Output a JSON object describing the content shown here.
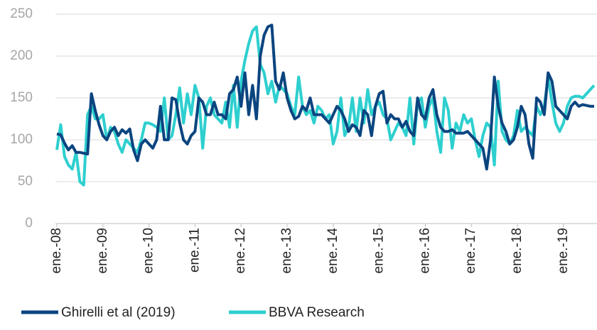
{
  "chart_data": {
    "type": "line",
    "categories": [
      "ene.-08",
      null,
      null,
      null,
      null,
      null,
      null,
      null,
      null,
      null,
      null,
      null,
      "ene.-09",
      null,
      null,
      null,
      null,
      null,
      null,
      null,
      null,
      null,
      null,
      null,
      "ene.-10",
      null,
      null,
      null,
      null,
      null,
      null,
      null,
      null,
      null,
      null,
      null,
      "ene.-11",
      null,
      null,
      null,
      null,
      null,
      null,
      null,
      null,
      null,
      null,
      null,
      "ene.-12",
      null,
      null,
      null,
      null,
      null,
      null,
      null,
      null,
      null,
      null,
      null,
      "ene.-13",
      null,
      null,
      null,
      null,
      null,
      null,
      null,
      null,
      null,
      null,
      null,
      "ene.-14",
      null,
      null,
      null,
      null,
      null,
      null,
      null,
      null,
      null,
      null,
      null,
      "ene.-15",
      null,
      null,
      null,
      null,
      null,
      null,
      null,
      null,
      null,
      null,
      null,
      "ene.-16",
      null,
      null,
      null,
      null,
      null,
      null,
      null,
      null,
      null,
      null,
      null,
      "ene.-17",
      null,
      null,
      null,
      null,
      null,
      null,
      null,
      null,
      null,
      null,
      null,
      "ene.-18",
      null,
      null,
      null,
      null,
      null,
      null,
      null,
      null,
      null,
      null,
      null,
      "ene.-19",
      null,
      null,
      null,
      null,
      null,
      null,
      null,
      null
    ],
    "series": [
      {
        "name": "Ghirelli et al (2019)",
        "color": "#0b4580",
        "values": [
          107,
          106,
          96,
          88,
          93,
          85,
          85,
          84,
          83,
          155,
          135,
          118,
          105,
          100,
          110,
          115,
          105,
          112,
          108,
          113,
          88,
          75,
          95,
          100,
          95,
          90,
          100,
          140,
          100,
          100,
          150,
          148,
          120,
          100,
          95,
          105,
          110,
          150,
          145,
          130,
          130,
          145,
          130,
          130,
          125,
          155,
          160,
          175,
          140,
          180,
          130,
          165,
          125,
          200,
          225,
          235,
          237,
          170,
          160,
          180,
          150,
          135,
          125,
          128,
          140,
          135,
          150,
          130,
          130,
          130,
          125,
          120,
          130,
          140,
          135,
          125,
          110,
          118,
          115,
          105,
          135,
          130,
          105,
          140,
          155,
          158,
          120,
          130,
          125,
          125,
          115,
          122,
          110,
          105,
          150,
          130,
          125,
          150,
          160,
          130,
          115,
          110,
          110,
          112,
          108,
          108,
          108,
          110,
          105,
          100,
          95,
          90,
          65,
          100,
          175,
          140,
          120,
          110,
          95,
          100,
          115,
          140,
          130,
          95,
          78,
          150,
          145,
          130,
          180,
          170,
          140,
          135,
          130,
          125,
          140,
          145,
          140,
          142,
          141,
          140,
          140
        ]
      },
      {
        "name": "BBVA Research",
        "color": "#2ecfcf",
        "values": [
          88,
          118,
          80,
          70,
          65,
          85,
          50,
          46,
          130,
          140,
          125,
          125,
          130,
          100,
          115,
          110,
          95,
          85,
          100,
          95,
          90,
          85,
          100,
          120,
          120,
          118,
          115,
          110,
          150,
          100,
          105,
          130,
          162,
          120,
          155,
          130,
          165,
          150,
          90,
          140,
          150,
          130,
          125,
          120,
          145,
          115,
          165,
          115,
          170,
          195,
          215,
          230,
          235,
          190,
          180,
          155,
          170,
          145,
          165,
          160,
          155,
          140,
          130,
          175,
          140,
          130,
          135,
          120,
          140,
          135,
          125,
          130,
          95,
          110,
          150,
          105,
          115,
          150,
          110,
          150,
          120,
          160,
          130,
          140,
          145,
          130,
          125,
          100,
          110,
          120,
          115,
          105,
          150,
          95,
          145,
          150,
          115,
          140,
          150,
          110,
          85,
          150,
          135,
          90,
          120,
          110,
          130,
          120,
          125,
          100,
          80,
          105,
          120,
          115,
          70,
          170,
          110,
          100,
          95,
          105,
          135,
          110,
          115,
          110,
          105,
          140,
          130,
          140,
          175,
          145,
          120,
          110,
          120,
          140,
          150,
          152,
          152,
          150,
          155,
          160,
          165
        ]
      }
    ],
    "ylim": [
      0,
      250
    ],
    "yticks": [
      0,
      50,
      100,
      150,
      200,
      250
    ],
    "grid": true,
    "legend": "bottom"
  }
}
